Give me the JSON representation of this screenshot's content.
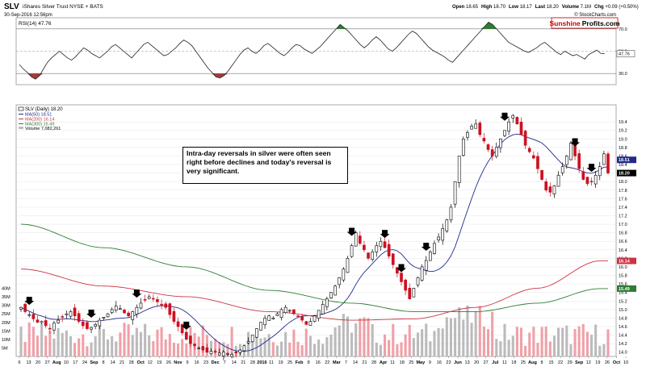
{
  "header": {
    "symbol": "SLV",
    "name": "iShares Silver Trust NYSE + BATS",
    "date": "30-Sep-2016 12:56pm",
    "credit": "© StockCharts.com",
    "quote": [
      {
        "label": "Open",
        "value": "18.65"
      },
      {
        "label": "High",
        "value": "18.70"
      },
      {
        "label": "Low",
        "value": "18.17"
      },
      {
        "label": "Last",
        "value": "18.20"
      },
      {
        "label": "Volume",
        "value": "7.1M"
      },
      {
        "label": "Chg",
        "value": "+0.09 (+0.50%)"
      }
    ]
  },
  "logo": {
    "part1": "Sunshine",
    "part2": "Profits",
    "part3": ".com",
    "color": "#cc0000"
  },
  "colors": {
    "ma50": "#1f2a8c",
    "ma200": "#cc3344",
    "ma300": "#2e7d32",
    "up": "#ffffff",
    "down": "#cc1122",
    "volume": "#bbbbbb",
    "volume_down": "#f0a0a8",
    "rsi_high": "#2e7d32",
    "rsi_low": "#a33a3a"
  },
  "annotation": "Intra-day reversals in silver were often seen right before declines and today's reversal is very significant.",
  "chart_data": [
    {
      "type": "line",
      "name": "rsi",
      "legend": "RSI(14) 47.76",
      "ylim": [
        20,
        80
      ],
      "levels": [
        70,
        50,
        30
      ],
      "tick_labels": [
        "70.0",
        "50.0",
        "30.0"
      ],
      "last_value": "47.76",
      "values": [
        38,
        34,
        31,
        27,
        25,
        28,
        34,
        40,
        44,
        47,
        50,
        47,
        44,
        42,
        45,
        49,
        53,
        51,
        48,
        46,
        44,
        47,
        50,
        54,
        56,
        53,
        50,
        47,
        44,
        48,
        52,
        56,
        58,
        55,
        52,
        49,
        46,
        47,
        50,
        53,
        57,
        60,
        58,
        55,
        50,
        45,
        40,
        35,
        31,
        27,
        26,
        28,
        32,
        37,
        42,
        47,
        51,
        53,
        50,
        48,
        51,
        55,
        57,
        54,
        51,
        48,
        46,
        49,
        53,
        56,
        55,
        52,
        50,
        48,
        51,
        54,
        58,
        62,
        66,
        70,
        74,
        71,
        68,
        64,
        60,
        56,
        53,
        56,
        60,
        63,
        60,
        56,
        52,
        50,
        53,
        57,
        61,
        65,
        68,
        66,
        62,
        58,
        54,
        51,
        49,
        47,
        45,
        42,
        40,
        44,
        48,
        52,
        56,
        60,
        64,
        68,
        72,
        76,
        74,
        70,
        66,
        62,
        58,
        56,
        54,
        52,
        50,
        49,
        51,
        53,
        56,
        58,
        55,
        52,
        49,
        47,
        50,
        48,
        46,
        47,
        45,
        43,
        47,
        49,
        51,
        48,
        47.76
      ]
    },
    {
      "type": "candlestick",
      "name": "price",
      "legend": [
        "SLV (Daily) 18.20",
        "MA(50) 18.51",
        "MA(200) 16.14",
        "MA(300) 15.49"
      ],
      "volume_legend": "Volume 7,082,261",
      "ylim": [
        13.9,
        19.8
      ],
      "ticks": [
        "19.4",
        "19.2",
        "19.0",
        "18.8",
        "18.6",
        "18.4",
        "18.2",
        "18.0",
        "17.8",
        "17.6",
        "17.4",
        "17.2",
        "17.0",
        "16.8",
        "16.6",
        "16.4",
        "16.2",
        "16.0",
        "15.8",
        "15.6",
        "15.4",
        "15.2",
        "15.0",
        "14.8",
        "14.6",
        "14.4",
        "14.2",
        "14.0"
      ],
      "last_price": "18.20",
      "ma50_last": "18.51",
      "ma200_last": "16.14",
      "ma300_last": "15.49",
      "volume_ticks": [
        "40M",
        "35M",
        "30M",
        "25M",
        "20M",
        "15M",
        "10M",
        "5M"
      ],
      "volume_max": 45,
      "x_labels": [
        "6",
        "13",
        "20",
        "27",
        "Aug",
        "10",
        "17",
        "24",
        "Sep",
        "8",
        "14",
        "21",
        "28",
        "Oct",
        "12",
        "19",
        "26",
        "Nov",
        "9",
        "16",
        "23",
        "Dec",
        "7",
        "14",
        "21",
        "28",
        "2016",
        "11",
        "19",
        "25",
        "Feb",
        "8",
        "16",
        "22",
        "Mar",
        "7",
        "14",
        "21",
        "28",
        "Apr",
        "11",
        "18",
        "25",
        "May",
        "9",
        "16",
        "23",
        "Jun",
        "13",
        "20",
        "27",
        "Jul",
        "11",
        "18",
        "25",
        "Aug",
        "8",
        "15",
        "22",
        "29",
        "Sep",
        "12",
        "19",
        "26",
        "Oct",
        "10"
      ],
      "close": [
        15.05,
        14.95,
        14.88,
        14.78,
        14.7,
        14.72,
        14.62,
        14.55,
        14.68,
        14.75,
        14.82,
        14.9,
        14.95,
        14.85,
        14.72,
        14.62,
        14.55,
        14.58,
        14.65,
        14.75,
        14.82,
        14.9,
        15.0,
        15.08,
        15.02,
        14.92,
        14.85,
        14.95,
        15.05,
        15.15,
        15.22,
        15.3,
        15.25,
        15.18,
        15.12,
        15.05,
        14.88,
        14.72,
        14.6,
        14.45,
        14.3,
        14.2,
        14.15,
        14.1,
        14.05,
        14.0,
        14.02,
        14.0,
        13.98,
        14.0,
        13.97,
        13.95,
        13.98,
        14.05,
        14.15,
        14.25,
        14.4,
        14.55,
        14.7,
        14.8,
        14.85,
        14.8,
        14.9,
        15.0,
        15.05,
        14.98,
        14.9,
        14.85,
        14.75,
        14.65,
        14.72,
        14.85,
        14.98,
        15.12,
        15.25,
        15.4,
        15.55,
        15.75,
        15.95,
        16.2,
        16.5,
        16.8,
        16.55,
        16.4,
        16.2,
        16.35,
        16.5,
        16.6,
        16.45,
        16.25,
        16.05,
        15.85,
        15.65,
        15.45,
        15.25,
        15.5,
        15.75,
        16.0,
        16.15,
        16.35,
        16.55,
        16.7,
        16.9,
        17.1,
        17.4,
        18.0,
        18.6,
        19.0,
        19.15,
        19.3,
        19.35,
        19.1,
        18.95,
        18.75,
        18.6,
        18.8,
        19.0,
        19.2,
        19.4,
        19.55,
        19.35,
        19.1,
        18.85,
        18.7,
        18.55,
        18.3,
        18.05,
        17.8,
        17.75,
        17.9,
        18.15,
        18.35,
        18.6,
        18.9,
        18.6,
        18.3,
        18.05,
        17.95,
        18.0,
        18.15,
        18.35,
        18.65,
        18.2
      ]
    }
  ]
}
